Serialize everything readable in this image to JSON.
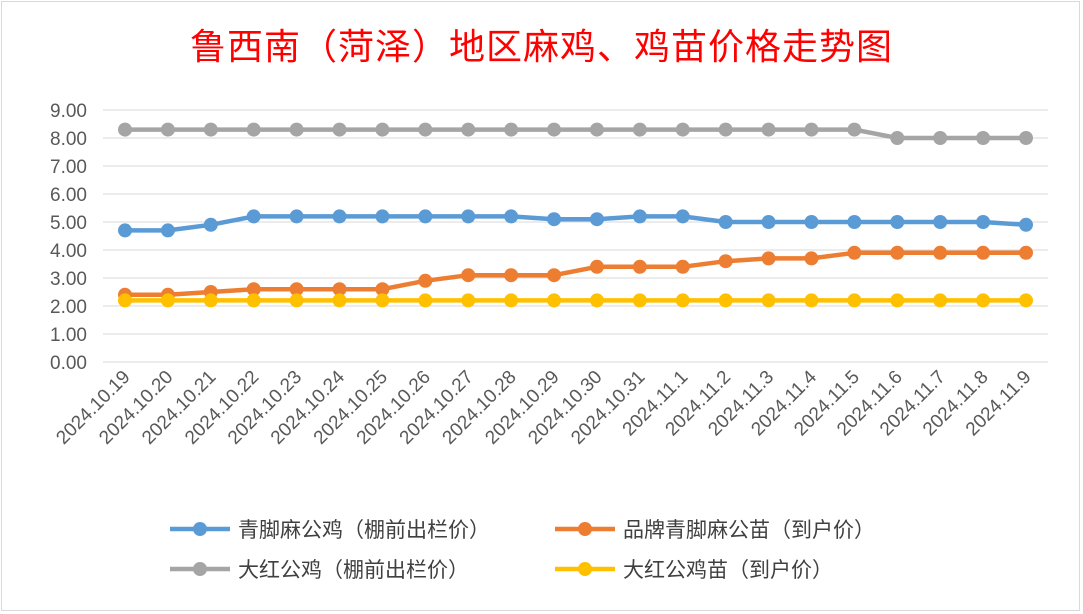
{
  "chart_data": {
    "type": "line",
    "title": "鲁西南（菏泽）地区麻鸡、鸡苗价格走势图",
    "categories": [
      "2024.10.19",
      "2024.10.20",
      "2024.10.21",
      "2024.10.22",
      "2024.10.23",
      "2024.10.24",
      "2024.10.25",
      "2024.10.26",
      "2024.10.27",
      "2024.10.28",
      "2024.10.29",
      "2024.10.30",
      "2024.10.31",
      "2024.11.1",
      "2024.11.2",
      "2024.11.3",
      "2024.11.4",
      "2024.11.5",
      "2024.11.6",
      "2024.11.7",
      "2024.11.8",
      "2024.11.9"
    ],
    "ylim": [
      0,
      9
    ],
    "yticks": [
      "0.00",
      "1.00",
      "2.00",
      "3.00",
      "4.00",
      "5.00",
      "6.00",
      "7.00",
      "8.00",
      "9.00"
    ],
    "grid": true,
    "legend": "bottom",
    "series": [
      {
        "name": "青脚麻公鸡（棚前出栏价）",
        "color": "#5b9bd5",
        "values": [
          4.7,
          4.7,
          4.9,
          5.2,
          5.2,
          5.2,
          5.2,
          5.2,
          5.2,
          5.2,
          5.1,
          5.1,
          5.2,
          5.2,
          5.0,
          5.0,
          5.0,
          5.0,
          5.0,
          5.0,
          5.0,
          4.9
        ]
      },
      {
        "name": "品牌青脚麻公苗（到户价）",
        "color": "#ed7d31",
        "values": [
          2.4,
          2.4,
          2.5,
          2.6,
          2.6,
          2.6,
          2.6,
          2.9,
          3.1,
          3.1,
          3.1,
          3.4,
          3.4,
          3.4,
          3.6,
          3.7,
          3.7,
          3.9,
          3.9,
          3.9,
          3.9,
          3.9
        ]
      },
      {
        "name": "大红公鸡（棚前出栏价）",
        "color": "#a5a5a5",
        "values": [
          8.3,
          8.3,
          8.3,
          8.3,
          8.3,
          8.3,
          8.3,
          8.3,
          8.3,
          8.3,
          8.3,
          8.3,
          8.3,
          8.3,
          8.3,
          8.3,
          8.3,
          8.3,
          8.0,
          8.0,
          8.0,
          8.0
        ]
      },
      {
        "name": "大红公鸡苗（到户价）",
        "color": "#ffc000",
        "values": [
          2.2,
          2.2,
          2.2,
          2.2,
          2.2,
          2.2,
          2.2,
          2.2,
          2.2,
          2.2,
          2.2,
          2.2,
          2.2,
          2.2,
          2.2,
          2.2,
          2.2,
          2.2,
          2.2,
          2.2,
          2.2,
          2.2
        ]
      }
    ]
  }
}
